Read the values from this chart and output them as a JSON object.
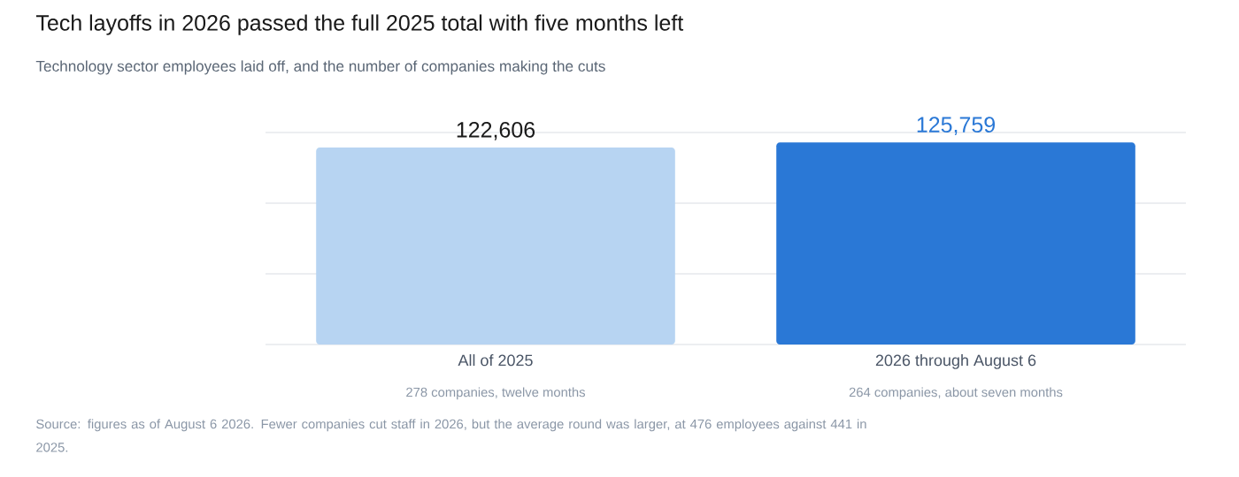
{
  "chart_data": {
    "type": "bar",
    "title": "Tech layoffs in 2026 passed the full 2025 total with five months left",
    "subtitle": "Technology sector employees laid off, and the number of companies making the cuts",
    "categories": [
      "All of 2025",
      "2026 through August 6"
    ],
    "values": [
      122606,
      125759
    ],
    "colors": [
      "#b7d4f2",
      "#2a78d6"
    ],
    "value_labels": [
      "122,606",
      "125,759"
    ],
    "ylim": [
      0,
      132000
    ],
    "yticks": [
      {
        "value": 0,
        "label": null
      },
      {
        "value": 44000,
        "label": null
      },
      {
        "value": 88000,
        "label": null
      },
      {
        "value": 132000,
        "label": null
      }
    ],
    "grid": "y",
    "tick_labels": "x",
    "annotations": [
      "278 companies, twelve months",
      "264 companies, about seven months",
      "Source: figures as of August 6 2026. Fewer companies cut staff in 2026, but the average round was larger, at 476 employees against 441 in 2025."
    ]
  }
}
